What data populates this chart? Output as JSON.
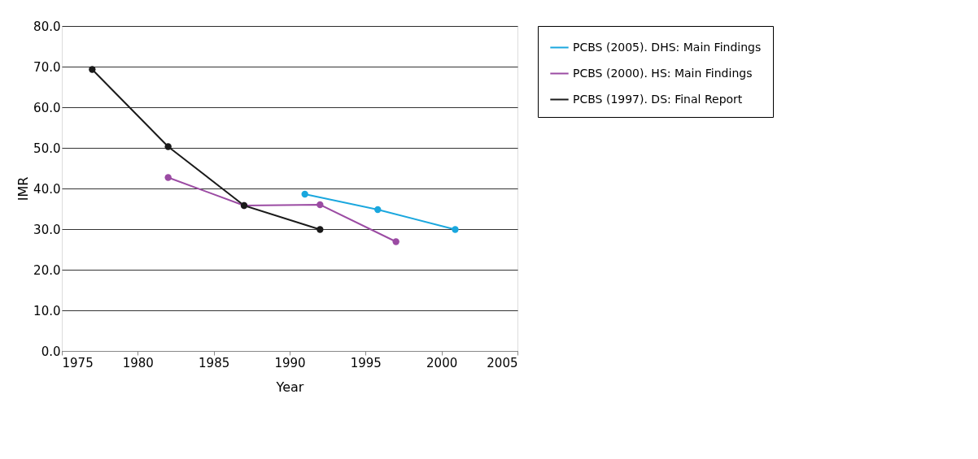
{
  "chart_data": {
    "type": "line",
    "xlabel": "Year",
    "ylabel": "IMR",
    "xlim": [
      1975,
      2005
    ],
    "xticks": [
      1975,
      1980,
      1985,
      1990,
      1995,
      2000,
      2005
    ],
    "ylim": [
      0,
      80
    ],
    "yticks": [
      {
        "value": 0,
        "label": "0.0"
      },
      {
        "value": 10,
        "label": "10.0"
      },
      {
        "value": 20,
        "label": "20.0"
      },
      {
        "value": 30,
        "label": "30.0"
      },
      {
        "value": 40,
        "label": "40.0"
      },
      {
        "value": 50,
        "label": "50.0"
      },
      {
        "value": 60,
        "label": "60.0"
      },
      {
        "value": 70,
        "label": "70.0"
      },
      {
        "value": 80,
        "label": "80.0"
      }
    ],
    "grid": "y",
    "legend": "right",
    "marker": "circle",
    "line_style": "solid",
    "series": [
      {
        "name": "PCBS (2005). DHS: Main Findings",
        "color": "#1aa7de",
        "x": [
          1991,
          1995.8,
          2000.9
        ],
        "values": [
          38.6,
          34.8,
          29.9
        ]
      },
      {
        "name": "PCBS (2000). HS: Main Findings",
        "color": "#9b4ba3",
        "x": [
          1982,
          1987,
          1992,
          1997
        ],
        "values": [
          42.7,
          35.8,
          36.0,
          26.9
        ]
      },
      {
        "name": "PCBS (1997). DS: Final Report",
        "color": "#1a1a1a",
        "x": [
          1977,
          1982,
          1987,
          1992
        ],
        "values": [
          69.3,
          50.3,
          35.8,
          29.9
        ]
      }
    ]
  }
}
